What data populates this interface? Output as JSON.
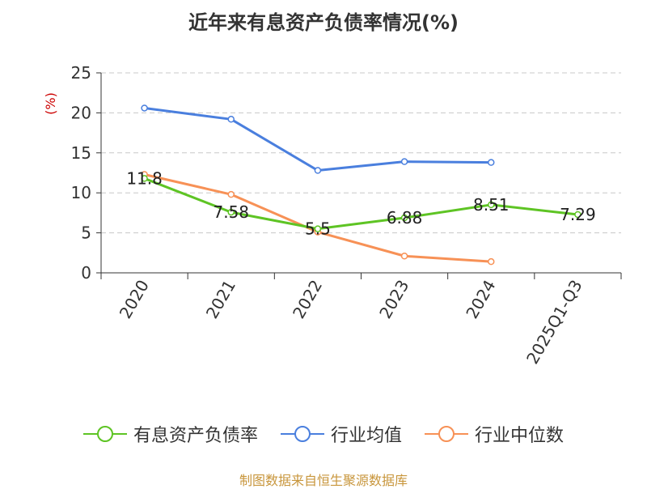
{
  "chart_data": {
    "type": "line",
    "title": "近年来有息资产负债率情况(%)",
    "ylabel": "(%)",
    "xlabel": "",
    "categories": [
      "2020",
      "2021",
      "2022",
      "2023",
      "2024",
      "2025Q1-Q3"
    ],
    "ylim": [
      0,
      25
    ],
    "yticks": [
      "0",
      "5",
      "10",
      "15",
      "20",
      "25"
    ],
    "grid": true,
    "legend_position": "bottom",
    "series": [
      {
        "name": "有息资产负债率",
        "color": "#5ec424",
        "values": [
          11.8,
          7.58,
          5.5,
          6.88,
          8.51,
          7.29
        ],
        "data_labels": [
          "11.8",
          "7.58",
          "5.5",
          "6.88",
          "8.51",
          "7.29"
        ]
      },
      {
        "name": "行业均值",
        "color": "#4a7fde",
        "values": [
          20.6,
          19.2,
          12.8,
          13.9,
          13.8,
          null
        ]
      },
      {
        "name": "行业中位数",
        "color": "#f79156",
        "values": [
          12.3,
          9.8,
          5.1,
          2.1,
          1.4,
          null
        ]
      }
    ]
  },
  "source": "制图数据来自恒生聚源数据库"
}
